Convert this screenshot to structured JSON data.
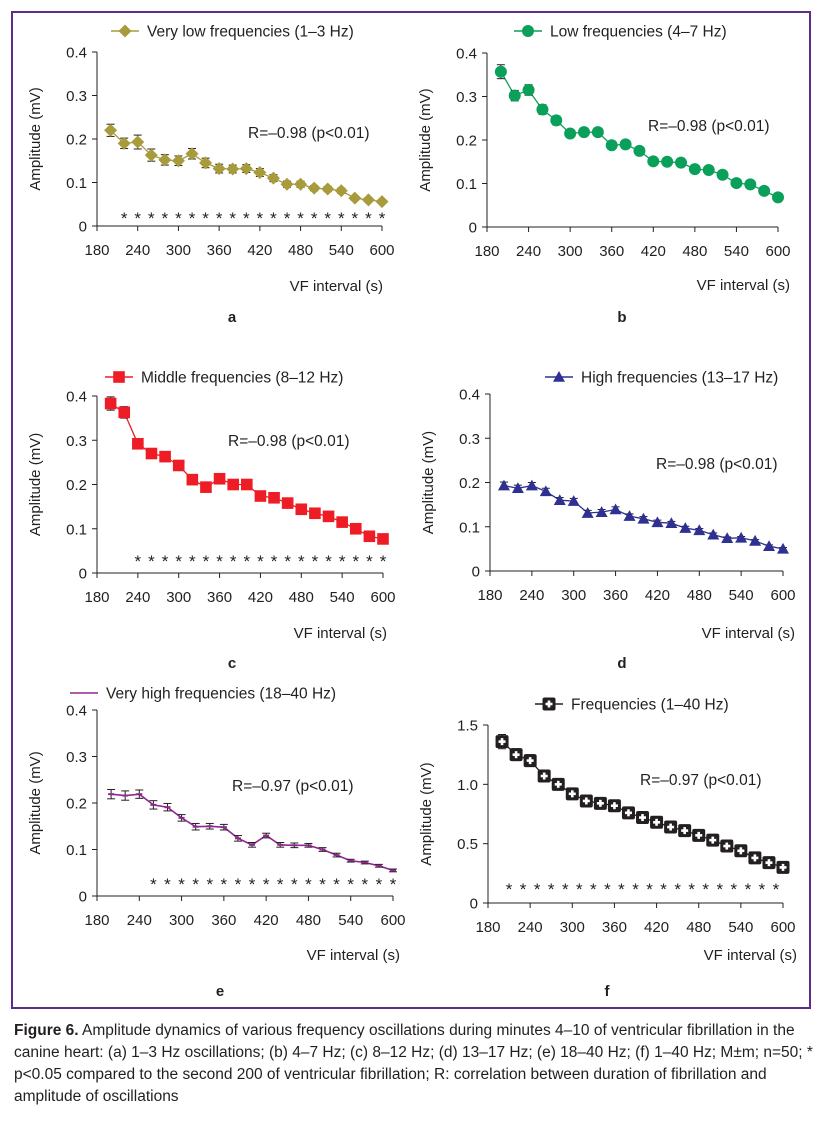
{
  "caption": {
    "label": "Figure 6.",
    "text": " Amplitude dynamics of various frequency oscillations during minutes 4–10 of ventricular fibrillation in the canine heart: (a) 1–3 Hz oscillations; (b) 4–7 Hz; (c) 8–12 Hz; (d) 13–17 Hz; (e) 18–40 Hz; (f) 1–40 Hz; M±m; n=50; * p<0.05 compared to the second 200 of ventricular fibrillation; R: correlation between duration of fibrillation and amplitude of oscillations"
  },
  "colors": {
    "frame": "#5b2d86",
    "a": "#a89b3c",
    "b": "#0aa05a",
    "c": "#ee1c24",
    "d": "#2e3192",
    "e": "#92278f",
    "f": "#231f20"
  },
  "chart_data": [
    {
      "id": "a",
      "panel_label": "a",
      "type": "line",
      "marker": "diamond",
      "legend": "Very low frequencies (1–3 Hz)",
      "xlabel": "VF interval (s)",
      "ylabel": "Amplitude (mV)",
      "xlim": [
        180,
        600
      ],
      "ylim": [
        0,
        0.4
      ],
      "xticks": [
        "180",
        "240",
        "300",
        "360",
        "420",
        "480",
        "540",
        "600"
      ],
      "yticks": [
        "0",
        "0.1",
        "0.2",
        "0.3",
        "0.4"
      ],
      "annotation": "R=–0.98 (p<0.01)",
      "x": [
        200,
        220,
        240,
        260,
        280,
        300,
        320,
        340,
        360,
        380,
        400,
        420,
        440,
        460,
        480,
        500,
        520,
        540,
        560,
        580,
        600
      ],
      "y": [
        0.22,
        0.19,
        0.193,
        0.163,
        0.152,
        0.15,
        0.166,
        0.145,
        0.132,
        0.131,
        0.132,
        0.123,
        0.11,
        0.096,
        0.096,
        0.087,
        0.085,
        0.081,
        0.064,
        0.06,
        0.056
      ],
      "err": [
        0.014,
        0.012,
        0.016,
        0.014,
        0.012,
        0.011,
        0.012,
        0.011,
        0.01,
        0.009,
        0.009,
        0.009,
        0.008,
        0.007,
        0.007,
        0.006,
        0.006,
        0.006,
        0.005,
        0.005,
        0.004
      ],
      "significance": "*",
      "sig_x": [
        220,
        240,
        260,
        280,
        300,
        320,
        340,
        360,
        380,
        400,
        420,
        440,
        460,
        480,
        500,
        520,
        540,
        560,
        580,
        600
      ]
    },
    {
      "id": "b",
      "panel_label": "b",
      "type": "line",
      "marker": "circle",
      "legend": "Low frequencies (4–7 Hz)",
      "xlabel": "VF interval (s)",
      "ylabel": "Amplitude (mV)",
      "xlim": [
        180,
        600
      ],
      "ylim": [
        0,
        0.4
      ],
      "xticks": [
        "180",
        "240",
        "300",
        "360",
        "420",
        "480",
        "540",
        "600"
      ],
      "yticks": [
        "0",
        "0.1",
        "0.2",
        "0.3",
        "0.4"
      ],
      "annotation": "R=–0.98 (p<0.01)",
      "x": [
        200,
        220,
        240,
        260,
        280,
        300,
        320,
        340,
        360,
        380,
        400,
        420,
        440,
        460,
        480,
        500,
        520,
        540,
        560,
        580,
        600
      ],
      "y": [
        0.357,
        0.302,
        0.315,
        0.27,
        0.245,
        0.215,
        0.218,
        0.218,
        0.188,
        0.19,
        0.175,
        0.151,
        0.15,
        0.148,
        0.133,
        0.131,
        0.12,
        0.101,
        0.098,
        0.083,
        0.068
      ],
      "err": [
        0.016,
        0.012,
        0.012,
        0.011,
        0.01,
        0.009,
        0.009,
        0.009,
        0.008,
        0.008,
        0.007,
        0.007,
        0.006,
        0.006,
        0.006,
        0.006,
        0.005,
        0.005,
        0.004,
        0.004,
        0.003
      ],
      "significance": "",
      "sig_x": []
    },
    {
      "id": "c",
      "panel_label": "c",
      "type": "line",
      "marker": "square",
      "legend": "Middle frequencies (8–12 Hz)",
      "xlabel": "VF interval (s)",
      "ylabel": "Amplitude (mV)",
      "xlim": [
        180,
        600
      ],
      "ylim": [
        0,
        0.4
      ],
      "xticks": [
        "180",
        "240",
        "300",
        "360",
        "420",
        "480",
        "540",
        "600"
      ],
      "yticks": [
        "0",
        "0.1",
        "0.2",
        "0.3",
        "0.4"
      ],
      "annotation": "R=–0.98 (p<0.01)",
      "x": [
        200,
        220,
        240,
        260,
        280,
        300,
        320,
        340,
        360,
        380,
        400,
        420,
        440,
        460,
        480,
        500,
        520,
        540,
        560,
        580,
        600
      ],
      "y": [
        0.383,
        0.363,
        0.292,
        0.27,
        0.263,
        0.243,
        0.211,
        0.194,
        0.213,
        0.2,
        0.2,
        0.174,
        0.17,
        0.158,
        0.144,
        0.135,
        0.128,
        0.115,
        0.1,
        0.083,
        0.077
      ],
      "err": [
        0.015,
        0.013,
        0.011,
        0.01,
        0.01,
        0.009,
        0.008,
        0.008,
        0.008,
        0.008,
        0.007,
        0.007,
        0.007,
        0.006,
        0.006,
        0.005,
        0.005,
        0.005,
        0.004,
        0.004,
        0.003
      ],
      "significance": "*",
      "sig_x": [
        240,
        260,
        280,
        300,
        320,
        340,
        360,
        380,
        400,
        420,
        440,
        460,
        480,
        500,
        520,
        540,
        560,
        580,
        600
      ]
    },
    {
      "id": "d",
      "panel_label": "d",
      "type": "line",
      "marker": "triangle",
      "legend": "High frequencies (13–17 Hz)",
      "xlabel": "VF interval (s)",
      "ylabel": "Amplitude (mV)",
      "xlim": [
        180,
        600
      ],
      "ylim": [
        0,
        0.4
      ],
      "xticks": [
        "180",
        "240",
        "300",
        "360",
        "420",
        "480",
        "540",
        "600"
      ],
      "yticks": [
        "0",
        "0.1",
        "0.2",
        "0.3",
        "0.4"
      ],
      "annotation": "R=–0.98 (p<0.01)",
      "x": [
        200,
        220,
        240,
        260,
        280,
        300,
        320,
        340,
        360,
        380,
        400,
        420,
        440,
        460,
        480,
        500,
        520,
        540,
        560,
        580,
        600
      ],
      "y": [
        0.193,
        0.187,
        0.193,
        0.18,
        0.16,
        0.158,
        0.131,
        0.133,
        0.139,
        0.124,
        0.118,
        0.11,
        0.108,
        0.097,
        0.092,
        0.082,
        0.074,
        0.075,
        0.068,
        0.056,
        0.05
      ],
      "err": [
        0.008,
        0.007,
        0.007,
        0.007,
        0.006,
        0.006,
        0.006,
        0.006,
        0.006,
        0.005,
        0.005,
        0.005,
        0.004,
        0.004,
        0.004,
        0.004,
        0.003,
        0.003,
        0.003,
        0.003,
        0.003
      ],
      "significance": "",
      "sig_x": []
    },
    {
      "id": "e",
      "panel_label": "e",
      "type": "line",
      "marker": "dash",
      "legend": "Very high frequencies (18–40 Hz)",
      "xlabel": "VF interval (s)",
      "ylabel": "Amplitude (mV)",
      "xlim": [
        180,
        600
      ],
      "ylim": [
        0,
        0.4
      ],
      "xticks": [
        "180",
        "240",
        "300",
        "360",
        "420",
        "480",
        "540",
        "600"
      ],
      "yticks": [
        "0",
        "0.1",
        "0.2",
        "0.3",
        "0.4"
      ],
      "annotation": "R=–0.97 (p<0.01)",
      "x": [
        200,
        220,
        240,
        260,
        280,
        300,
        320,
        340,
        360,
        380,
        400,
        420,
        440,
        460,
        480,
        500,
        520,
        540,
        560,
        580,
        600
      ],
      "y": [
        0.219,
        0.216,
        0.219,
        0.196,
        0.191,
        0.168,
        0.149,
        0.15,
        0.148,
        0.124,
        0.11,
        0.13,
        0.11,
        0.109,
        0.109,
        0.1,
        0.088,
        0.076,
        0.072,
        0.065,
        0.055
      ],
      "err": [
        0.01,
        0.01,
        0.009,
        0.009,
        0.008,
        0.007,
        0.007,
        0.006,
        0.006,
        0.006,
        0.005,
        0.005,
        0.005,
        0.005,
        0.004,
        0.004,
        0.004,
        0.003,
        0.003,
        0.003,
        0.003
      ],
      "significance": "*",
      "sig_x": [
        260,
        280,
        300,
        320,
        340,
        360,
        380,
        400,
        420,
        440,
        460,
        480,
        500,
        520,
        540,
        560,
        580,
        600
      ]
    },
    {
      "id": "f",
      "panel_label": "f",
      "type": "line",
      "marker": "cross-square",
      "legend": "Frequencies (1–40 Hz)",
      "xlabel": "VF interval (s)",
      "ylabel": "Amplitude (mV)",
      "xlim": [
        180,
        600
      ],
      "ylim": [
        0,
        1.5
      ],
      "xticks": [
        "180",
        "240",
        "300",
        "360",
        "420",
        "480",
        "540",
        "600"
      ],
      "yticks": [
        "0",
        "0.5",
        "1.0",
        "1.5"
      ],
      "annotation": "R=–0.97 (p<0.01)",
      "x": [
        200,
        220,
        240,
        260,
        280,
        300,
        320,
        340,
        360,
        380,
        400,
        420,
        440,
        460,
        480,
        500,
        520,
        540,
        560,
        580,
        600
      ],
      "y": [
        1.36,
        1.25,
        1.2,
        1.07,
        1.0,
        0.92,
        0.86,
        0.84,
        0.82,
        0.76,
        0.72,
        0.68,
        0.64,
        0.61,
        0.57,
        0.53,
        0.48,
        0.44,
        0.38,
        0.34,
        0.3
      ],
      "err": [
        0.06,
        0.05,
        0.05,
        0.04,
        0.04,
        0.04,
        0.03,
        0.03,
        0.03,
        0.03,
        0.03,
        0.03,
        0.02,
        0.02,
        0.02,
        0.02,
        0.02,
        0.02,
        0.02,
        0.02,
        0.02
      ],
      "significance": "*",
      "sig_x": [
        210,
        230,
        250,
        270,
        290,
        310,
        330,
        350,
        370,
        390,
        410,
        430,
        450,
        470,
        490,
        510,
        530,
        550,
        570,
        590
      ]
    }
  ]
}
